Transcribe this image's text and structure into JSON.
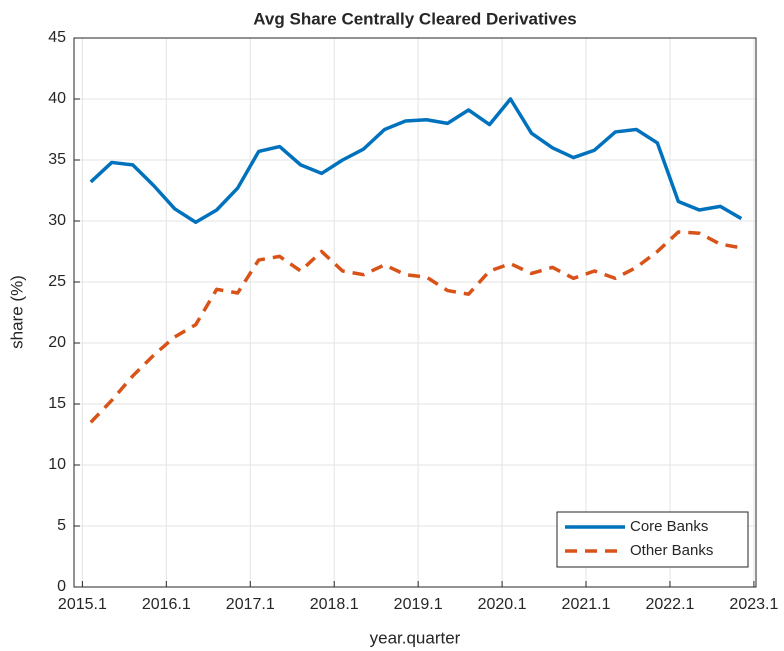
{
  "chart_data": {
    "type": "line",
    "title": "Avg Share Centrally Cleared Derivatives",
    "x_label": "year.quarter",
    "y_label": "share (%)",
    "x": [
      2015.2,
      2015.45,
      2015.7,
      2015.95,
      2016.2,
      2016.45,
      2016.7,
      2016.95,
      2017.2,
      2017.45,
      2017.7,
      2017.95,
      2018.2,
      2018.45,
      2018.7,
      2018.95,
      2019.2,
      2019.45,
      2019.7,
      2019.95,
      2020.2,
      2020.45,
      2020.7,
      2020.95,
      2021.2,
      2021.45,
      2021.7,
      2021.95,
      2022.2,
      2022.45,
      2022.7,
      2022.95
    ],
    "series": [
      {
        "name": "Core Banks",
        "color": "#0072BD",
        "dash": "solid",
        "values": [
          33.2,
          34.8,
          34.6,
          32.9,
          31.0,
          29.9,
          30.9,
          32.7,
          35.7,
          36.1,
          34.6,
          33.9,
          35.0,
          35.9,
          37.5,
          38.2,
          38.3,
          38.0,
          39.1,
          37.9,
          40.0,
          37.2,
          36.0,
          35.2,
          35.8,
          37.3,
          37.5,
          36.4,
          31.6,
          30.9,
          31.2,
          30.2
        ]
      },
      {
        "name": "Other Banks",
        "color": "#D95319",
        "dash": "dashed",
        "values": [
          13.5,
          15.3,
          17.3,
          19.0,
          20.5,
          21.5,
          24.4,
          24.1,
          26.8,
          27.1,
          25.9,
          27.5,
          25.9,
          25.6,
          26.4,
          25.6,
          25.4,
          24.3,
          24.0,
          25.9,
          26.5,
          25.7,
          26.2,
          25.3,
          25.9,
          25.3,
          26.2,
          27.5,
          29.1,
          29.0,
          28.1,
          27.8
        ]
      }
    ],
    "xlim": [
      2015,
      2023.125
    ],
    "xticks": [
      2015.1,
      2016.1,
      2017.1,
      2018.1,
      2019.1,
      2020.1,
      2021.1,
      2022.1,
      2023.1
    ],
    "ylim": [
      0,
      45
    ],
    "yticks": [
      0,
      5,
      10,
      15,
      20,
      25,
      30,
      35,
      40,
      45
    ],
    "grid": true,
    "legend_position": "bottom-right"
  }
}
